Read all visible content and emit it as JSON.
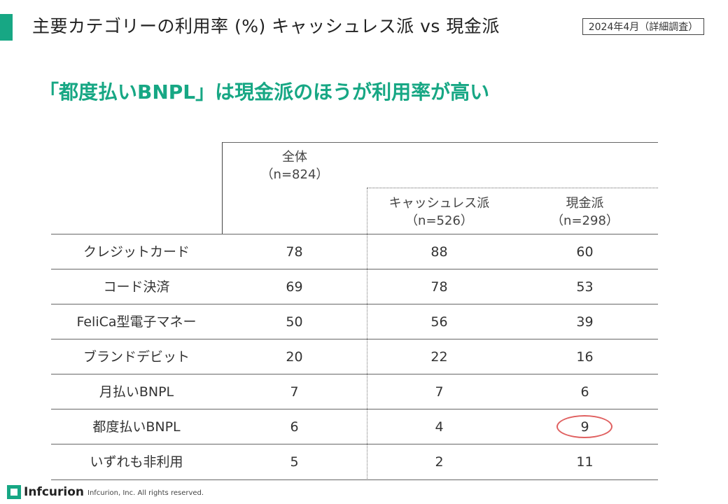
{
  "header": {
    "title": "主要カテゴリーの利用率 (%)  キャッシュレス派 vs 現金派",
    "date_badge": "2024年4月（詳細調査）",
    "accent_color": "#17a784"
  },
  "headline": "「都度払いBNPL」は現金派のほうが利用率が高い",
  "table": {
    "col_all": {
      "label": "全体",
      "n": "（n=824）"
    },
    "col_cash": {
      "label": "キャッシュレス派",
      "n": "（n=526）"
    },
    "col_genkin": {
      "label": "現金派",
      "n": "（n=298）"
    },
    "rows": [
      {
        "label": "クレジットカード",
        "all": "78",
        "cash": "88",
        "genkin": "60"
      },
      {
        "label": "コード決済",
        "all": "69",
        "cash": "78",
        "genkin": "53"
      },
      {
        "label": "FeliCa型電子マネー",
        "all": "50",
        "cash": "56",
        "genkin": "39"
      },
      {
        "label": "ブランドデビット",
        "all": "20",
        "cash": "22",
        "genkin": "16"
      },
      {
        "label": "月払いBNPL",
        "all": "7",
        "cash": "7",
        "genkin": "6"
      },
      {
        "label": "都度払いBNPL",
        "all": "6",
        "cash": "4",
        "genkin": "9"
      },
      {
        "label": "いずれも非利用",
        "all": "5",
        "cash": "2",
        "genkin": "11"
      }
    ],
    "highlight_color": "#e06060"
  },
  "footer": {
    "logo_text": "Infcurion",
    "copyright": "Infcurion, Inc.  All rights reserved."
  }
}
